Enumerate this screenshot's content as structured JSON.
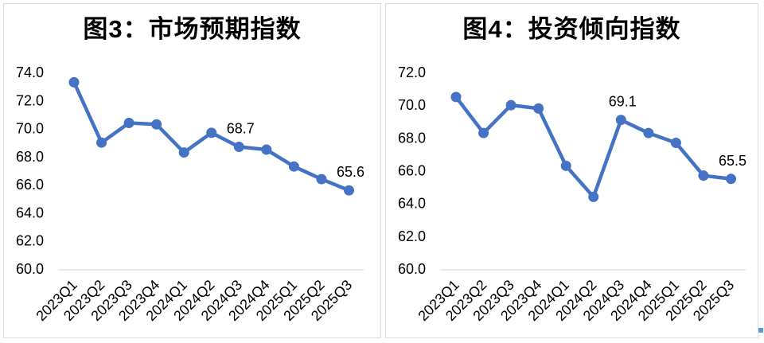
{
  "styles": {
    "line_color": "#4472C4",
    "axis_line_color": "#d9d9d9",
    "text_color": "#000000",
    "panel_border_color": "#dcdcdc",
    "background": "#ffffff"
  },
  "chart_data": [
    {
      "type": "line",
      "title": "图3：市场预期指数",
      "categories": [
        "2023Q1",
        "2023Q2",
        "2023Q3",
        "2023Q4",
        "2024Q1",
        "2024Q2",
        "2024Q3",
        "2024Q4",
        "2025Q1",
        "2025Q2",
        "2025Q3"
      ],
      "values": [
        73.3,
        69.0,
        70.4,
        70.3,
        68.3,
        69.7,
        68.7,
        68.5,
        67.3,
        66.4,
        65.6
      ],
      "data_labels": [
        {
          "category": "2024Q3",
          "text": "68.7"
        },
        {
          "category": "2025Q3",
          "text": "65.6"
        }
      ],
      "ylim": [
        60.0,
        74.0
      ],
      "ytick_step": 2.0,
      "ytick_labels": [
        "74.0",
        "72.0",
        "70.0",
        "68.0",
        "66.0",
        "64.0",
        "62.0",
        "60.0"
      ],
      "xlabel": "",
      "ylabel": "",
      "grid": false,
      "legend": "none",
      "marker": "circle",
      "line_color": "#4472C4"
    },
    {
      "type": "line",
      "title": "图4：投资倾向指数",
      "categories": [
        "2023Q1",
        "2023Q2",
        "2023Q3",
        "2023Q4",
        "2024Q1",
        "2024Q2",
        "2024Q3",
        "2024Q4",
        "2025Q1",
        "2025Q2",
        "2025Q3"
      ],
      "values": [
        70.5,
        68.3,
        70.0,
        69.8,
        66.3,
        64.4,
        69.1,
        68.3,
        67.7,
        65.7,
        65.5
      ],
      "data_labels": [
        {
          "category": "2024Q3",
          "text": "69.1"
        },
        {
          "category": "2025Q3",
          "text": "65.5"
        }
      ],
      "ylim": [
        60.0,
        72.0
      ],
      "ytick_step": 2.0,
      "ytick_labels": [
        "72.0",
        "70.0",
        "68.0",
        "66.0",
        "64.0",
        "62.0",
        "60.0"
      ],
      "xlabel": "",
      "ylabel": "",
      "grid": false,
      "legend": "none",
      "marker": "circle",
      "line_color": "#4472C4"
    }
  ]
}
